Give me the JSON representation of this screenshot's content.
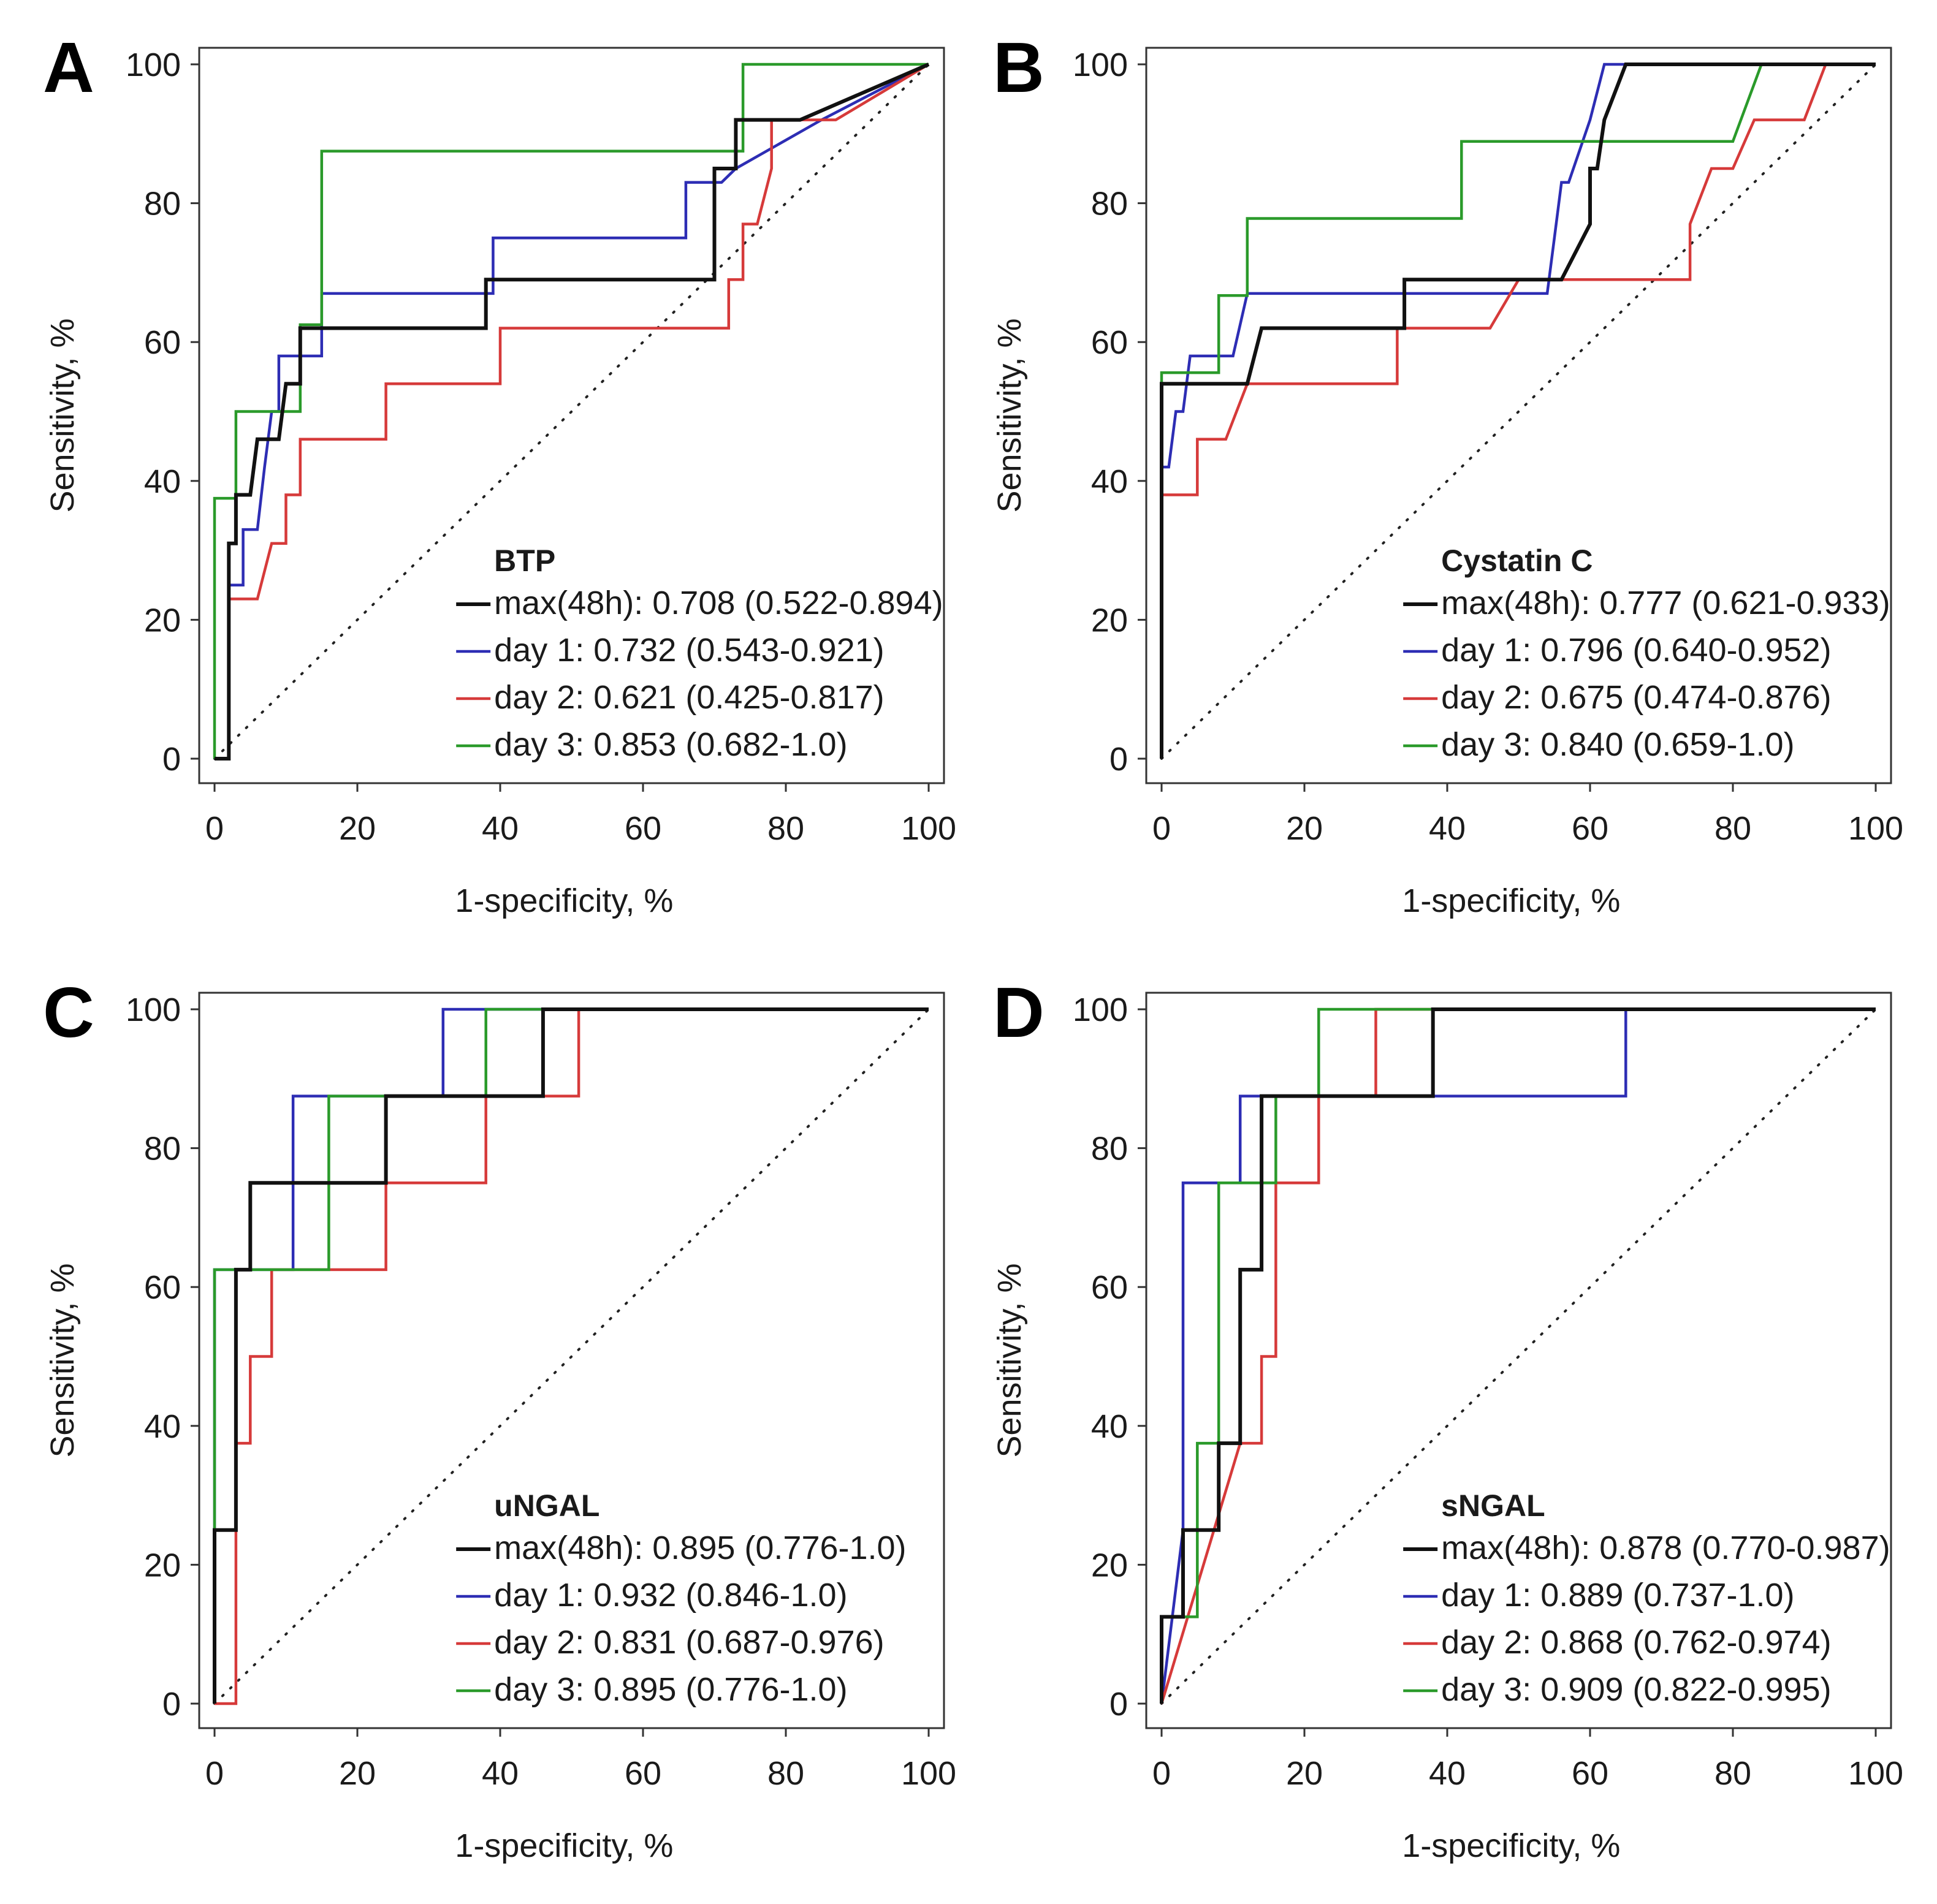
{
  "figure": {
    "colors": {
      "max48h": "#111111",
      "day1": "#2d2db4",
      "day2": "#d63a3a",
      "day3": "#2a9a2a",
      "reference": "#222222",
      "frame": "#333333"
    }
  },
  "chart_data": [
    {
      "panel": "A",
      "type": "line",
      "title": "BTP",
      "xlabel": "1-specificity, %",
      "ylabel": "Sensitivity, %",
      "xlim": [
        0,
        100
      ],
      "ylim": [
        0,
        100
      ],
      "xticks": [
        0,
        20,
        40,
        60,
        80,
        100
      ],
      "yticks": [
        0,
        20,
        40,
        60,
        80,
        100
      ],
      "legend_position": "bottom-right",
      "reference_line": {
        "style": "dotted",
        "from": [
          0,
          0
        ],
        "to": [
          100,
          100
        ]
      },
      "series": [
        {
          "key": "max48h",
          "name": "max(48h): 0.708 (0.522-0.894)",
          "color": "#111111",
          "points": [
            [
              0,
              0
            ],
            [
              2,
              0
            ],
            [
              2,
              31
            ],
            [
              3,
              31
            ],
            [
              3,
              38
            ],
            [
              5,
              38
            ],
            [
              6,
              46
            ],
            [
              9,
              46
            ],
            [
              10,
              54
            ],
            [
              12,
              54
            ],
            [
              12,
              62
            ],
            [
              38,
              62
            ],
            [
              38,
              69
            ],
            [
              70,
              69
            ],
            [
              70,
              85
            ],
            [
              73,
              85
            ],
            [
              73,
              92
            ],
            [
              82,
              92
            ],
            [
              100,
              100
            ]
          ]
        },
        {
          "key": "day1",
          "name": "day 1: 0.732 (0.543-0.921)",
          "color": "#2d2db4",
          "points": [
            [
              0,
              0
            ],
            [
              2,
              0
            ],
            [
              2,
              25
            ],
            [
              4,
              25
            ],
            [
              4,
              33
            ],
            [
              6,
              33
            ],
            [
              7,
              42
            ],
            [
              8,
              50
            ],
            [
              9,
              50
            ],
            [
              9,
              58
            ],
            [
              12,
              58
            ],
            [
              13,
              58
            ],
            [
              15,
              58
            ],
            [
              15,
              67
            ],
            [
              39,
              67
            ],
            [
              39,
              75
            ],
            [
              66,
              75
            ],
            [
              66,
              83
            ],
            [
              71,
              83
            ],
            [
              73,
              85
            ],
            [
              85,
              92
            ],
            [
              100,
              100
            ]
          ]
        },
        {
          "key": "day2",
          "name": "day 2: 0.621 (0.425-0.817)",
          "color": "#d63a3a",
          "points": [
            [
              0,
              0
            ],
            [
              2,
              0
            ],
            [
              2,
              23
            ],
            [
              6,
              23
            ],
            [
              8,
              31
            ],
            [
              10,
              31
            ],
            [
              10,
              38
            ],
            [
              12,
              38
            ],
            [
              12,
              46
            ],
            [
              24,
              46
            ],
            [
              24,
              54
            ],
            [
              40,
              54
            ],
            [
              40,
              62
            ],
            [
              72,
              62
            ],
            [
              72,
              69
            ],
            [
              74,
              69
            ],
            [
              74,
              77
            ],
            [
              76,
              77
            ],
            [
              78,
              85
            ],
            [
              78,
              92
            ],
            [
              87,
              92
            ],
            [
              100,
              100
            ]
          ]
        },
        {
          "key": "day3",
          "name": "day 3: 0.853 (0.682-1.0)",
          "color": "#2a9a2a",
          "points": [
            [
              0,
              0
            ],
            [
              0,
              37.5
            ],
            [
              3,
              37.5
            ],
            [
              3,
              50
            ],
            [
              12,
              50
            ],
            [
              12,
              62.5
            ],
            [
              15,
              62.5
            ],
            [
              15,
              87.5
            ],
            [
              74,
              87.5
            ],
            [
              74,
              100
            ],
            [
              100,
              100
            ]
          ]
        }
      ]
    },
    {
      "panel": "B",
      "type": "line",
      "title": "Cystatin C",
      "xlabel": "1-specificity, %",
      "ylabel": "Sensitivity, %",
      "xlim": [
        0,
        100
      ],
      "ylim": [
        0,
        100
      ],
      "xticks": [
        0,
        20,
        40,
        60,
        80,
        100
      ],
      "yticks": [
        0,
        20,
        40,
        60,
        80,
        100
      ],
      "legend_position": "bottom-right",
      "reference_line": {
        "style": "dotted",
        "from": [
          0,
          0
        ],
        "to": [
          100,
          100
        ]
      },
      "series": [
        {
          "key": "max48h",
          "name": "max(48h): 0.777 (0.621-0.933)",
          "color": "#111111",
          "points": [
            [
              0,
              0
            ],
            [
              0,
              54
            ],
            [
              12,
              54
            ],
            [
              14,
              62
            ],
            [
              34,
              62
            ],
            [
              34,
              69
            ],
            [
              56,
              69
            ],
            [
              60,
              77
            ],
            [
              60,
              85
            ],
            [
              61,
              85
            ],
            [
              62,
              92
            ],
            [
              65,
              100
            ],
            [
              100,
              100
            ]
          ]
        },
        {
          "key": "day1",
          "name": "day 1: 0.796 (0.640-0.952)",
          "color": "#2d2db4",
          "points": [
            [
              0,
              0
            ],
            [
              0,
              42
            ],
            [
              1,
              42
            ],
            [
              2,
              50
            ],
            [
              3,
              50
            ],
            [
              4,
              58
            ],
            [
              10,
              58
            ],
            [
              12,
              67
            ],
            [
              54,
              67
            ],
            [
              55,
              75
            ],
            [
              56,
              83
            ],
            [
              57,
              83
            ],
            [
              60,
              92
            ],
            [
              62,
              100
            ],
            [
              100,
              100
            ]
          ]
        },
        {
          "key": "day2",
          "name": "day 2: 0.675 (0.474-0.876)",
          "color": "#d63a3a",
          "points": [
            [
              0,
              0
            ],
            [
              0,
              38
            ],
            [
              5,
              38
            ],
            [
              5,
              46
            ],
            [
              9,
              46
            ],
            [
              12,
              54
            ],
            [
              33,
              54
            ],
            [
              33,
              62
            ],
            [
              46,
              62
            ],
            [
              50,
              69
            ],
            [
              74,
              69
            ],
            [
              74,
              77
            ],
            [
              77,
              85
            ],
            [
              80,
              85
            ],
            [
              83,
              92
            ],
            [
              90,
              92
            ],
            [
              93,
              100
            ],
            [
              100,
              100
            ]
          ]
        },
        {
          "key": "day3",
          "name": "day 3: 0.840 (0.659-1.0)",
          "color": "#2a9a2a",
          "points": [
            [
              0,
              0
            ],
            [
              0,
              55.6
            ],
            [
              8,
              55.6
            ],
            [
              8,
              66.7
            ],
            [
              12,
              66.7
            ],
            [
              12,
              77.8
            ],
            [
              42,
              77.8
            ],
            [
              42,
              88.9
            ],
            [
              80,
              88.9
            ],
            [
              84,
              100
            ],
            [
              100,
              100
            ]
          ]
        }
      ]
    },
    {
      "panel": "C",
      "type": "line",
      "title": "uNGAL",
      "xlabel": "1-specificity, %",
      "ylabel": "Sensitivity, %",
      "xlim": [
        0,
        100
      ],
      "ylim": [
        0,
        100
      ],
      "xticks": [
        0,
        20,
        40,
        60,
        80,
        100
      ],
      "yticks": [
        0,
        20,
        40,
        60,
        80,
        100
      ],
      "legend_position": "bottom-right",
      "reference_line": {
        "style": "dotted",
        "from": [
          0,
          0
        ],
        "to": [
          100,
          100
        ]
      },
      "series": [
        {
          "key": "max48h",
          "name": "max(48h): 0.895 (0.776-1.0)",
          "color": "#111111",
          "points": [
            [
              0,
              0
            ],
            [
              0,
              25
            ],
            [
              3,
              25
            ],
            [
              3,
              62.5
            ],
            [
              5,
              62.5
            ],
            [
              5,
              75
            ],
            [
              24,
              75
            ],
            [
              24,
              87.5
            ],
            [
              46,
              87.5
            ],
            [
              46,
              100
            ],
            [
              100,
              100
            ]
          ]
        },
        {
          "key": "day1",
          "name": "day 1: 0.932 (0.846-1.0)",
          "color": "#2d2db4",
          "points": [
            [
              0,
              0
            ],
            [
              0,
              62.5
            ],
            [
              11,
              62.5
            ],
            [
              11,
              87.5
            ],
            [
              32,
              87.5
            ],
            [
              32,
              100
            ],
            [
              100,
              100
            ]
          ]
        },
        {
          "key": "day2",
          "name": "day 2: 0.831 (0.687-0.976)",
          "color": "#d63a3a",
          "points": [
            [
              0,
              0
            ],
            [
              3,
              0
            ],
            [
              3,
              37.5
            ],
            [
              5,
              37.5
            ],
            [
              5,
              50
            ],
            [
              8,
              50
            ],
            [
              8,
              62.5
            ],
            [
              24,
              62.5
            ],
            [
              24,
              75
            ],
            [
              38,
              75
            ],
            [
              38,
              87.5
            ],
            [
              51,
              87.5
            ],
            [
              51,
              100
            ],
            [
              100,
              100
            ]
          ]
        },
        {
          "key": "day3",
          "name": "day 3: 0.895 (0.776-1.0)",
          "color": "#2a9a2a",
          "points": [
            [
              0,
              0
            ],
            [
              0,
              62.5
            ],
            [
              16,
              62.5
            ],
            [
              16,
              75
            ],
            [
              16,
              87.5
            ],
            [
              38,
              87.5
            ],
            [
              38,
              100
            ],
            [
              100,
              100
            ]
          ]
        }
      ]
    },
    {
      "panel": "D",
      "type": "line",
      "title": "sNGAL",
      "xlabel": "1-specificity, %",
      "ylabel": "Sensitivity, %",
      "xlim": [
        0,
        100
      ],
      "ylim": [
        0,
        100
      ],
      "xticks": [
        0,
        20,
        40,
        60,
        80,
        100
      ],
      "yticks": [
        0,
        20,
        40,
        60,
        80,
        100
      ],
      "legend_position": "bottom-right",
      "reference_line": {
        "style": "dotted",
        "from": [
          0,
          0
        ],
        "to": [
          100,
          100
        ]
      },
      "series": [
        {
          "key": "max48h",
          "name": "max(48h): 0.878 (0.770-0.987)",
          "color": "#111111",
          "points": [
            [
              0,
              0
            ],
            [
              0,
              12.5
            ],
            [
              3,
              12.5
            ],
            [
              3,
              25
            ],
            [
              8,
              25
            ],
            [
              8,
              37.5
            ],
            [
              11,
              37.5
            ],
            [
              11,
              62.5
            ],
            [
              14,
              62.5
            ],
            [
              14,
              87.5
            ],
            [
              38,
              87.5
            ],
            [
              38,
              100
            ],
            [
              100,
              100
            ]
          ]
        },
        {
          "key": "day1",
          "name": "day 1: 0.889 (0.737-1.0)",
          "color": "#2d2db4",
          "points": [
            [
              0,
              0
            ],
            [
              3,
              25
            ],
            [
              3,
              75
            ],
            [
              11,
              75
            ],
            [
              11,
              87.5
            ],
            [
              65,
              87.5
            ],
            [
              65,
              100
            ],
            [
              100,
              100
            ]
          ]
        },
        {
          "key": "day2",
          "name": "day 2: 0.868 (0.762-0.974)",
          "color": "#d63a3a",
          "points": [
            [
              0,
              0
            ],
            [
              11,
              37.5
            ],
            [
              14,
              37.5
            ],
            [
              14,
              50
            ],
            [
              16,
              50
            ],
            [
              16,
              75
            ],
            [
              22,
              75
            ],
            [
              22,
              87.5
            ],
            [
              30,
              87.5
            ],
            [
              30,
              100
            ],
            [
              100,
              100
            ]
          ]
        },
        {
          "key": "day3",
          "name": "day 3: 0.909 (0.822-0.995)",
          "color": "#2a9a2a",
          "points": [
            [
              0,
              0
            ],
            [
              0,
              12.5
            ],
            [
              5,
              12.5
            ],
            [
              5,
              37.5
            ],
            [
              8,
              37.5
            ],
            [
              8,
              75
            ],
            [
              16,
              75
            ],
            [
              16,
              87.5
            ],
            [
              22,
              87.5
            ],
            [
              22,
              100
            ],
            [
              100,
              100
            ]
          ]
        }
      ]
    }
  ]
}
